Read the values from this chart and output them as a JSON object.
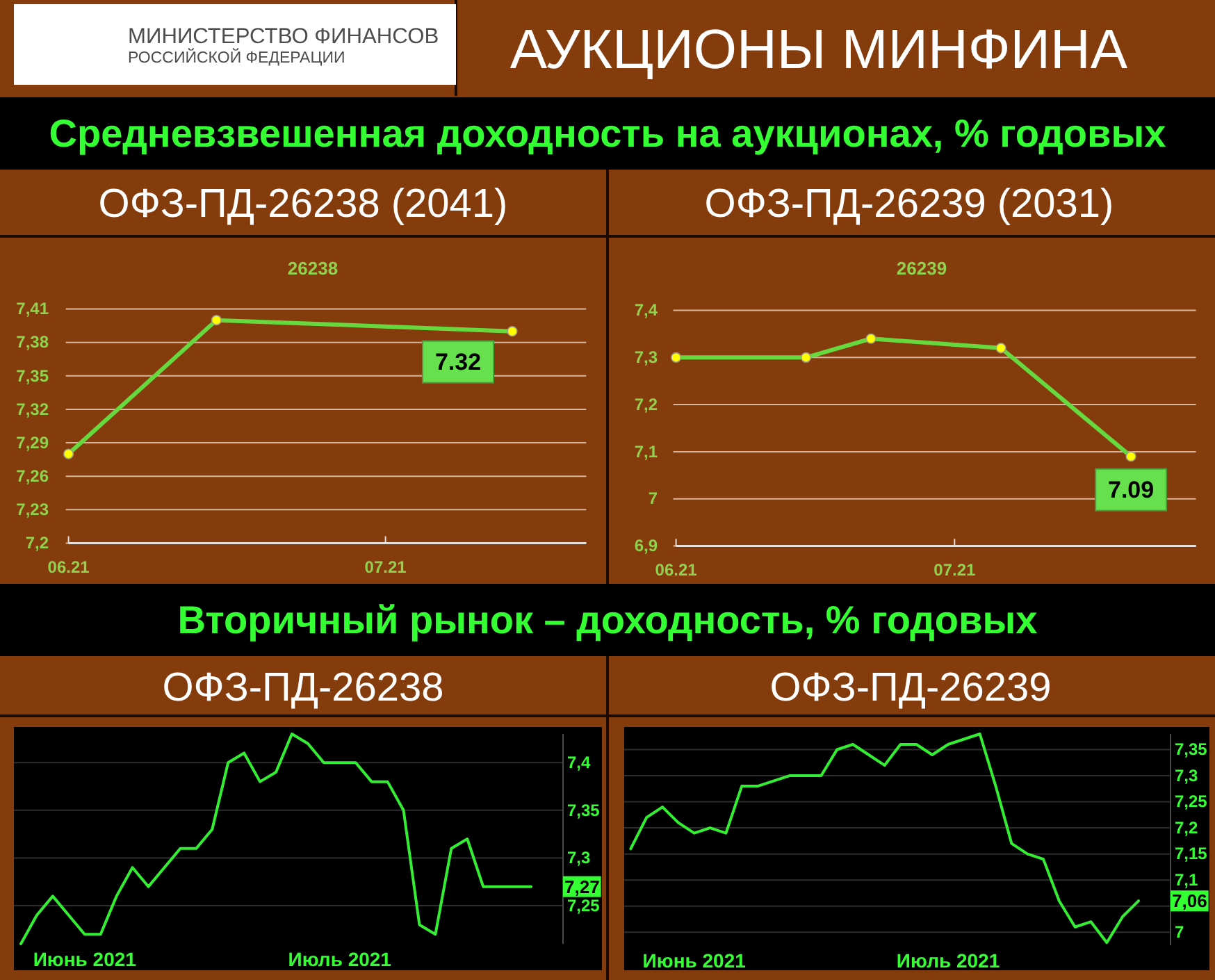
{
  "chart_data": [
    {
      "type": "other",
      "title": "АУКЦИОНЫ МИНФИНА",
      "annotations": [
        "МИНИСТЕРСТВО ФИНАНСОВ",
        "РОССИЙСКОЙ ФЕДЕРАЦИИ"
      ]
    },
    {
      "type": "line",
      "title": "ОФЗ-ПД-26238 (2041)",
      "subtitle": "26238",
      "annotations": [
        "Средневзвешенная доходность на аукционах, % годовых",
        "7.32"
      ],
      "x": [
        "2021-06-02",
        "2021-06-16",
        "2021-07-14"
      ],
      "values": [
        7.28,
        7.4,
        7.39
      ],
      "color": "#66d93f",
      "xlim": [
        "2021-06-02",
        "2021-07-21"
      ],
      "xticks": [
        {
          "value": "2021-06-02",
          "label": "06.21"
        },
        {
          "value": "2021-07-02",
          "label": "07.21"
        }
      ],
      "ylim": [
        7.2,
        7.41
      ],
      "yticks": [
        {
          "value": 7.2,
          "label": "7,2"
        },
        {
          "value": 7.23,
          "label": "7,23"
        },
        {
          "value": 7.26,
          "label": "7,26"
        },
        {
          "value": 7.29,
          "label": "7,29"
        },
        {
          "value": 7.32,
          "label": "7,32"
        },
        {
          "value": 7.35,
          "label": "7,35"
        },
        {
          "value": 7.38,
          "label": "7,38"
        },
        {
          "value": 7.41,
          "label": "7,41"
        }
      ],
      "grid": "y",
      "marker": "circle",
      "line_style": "solid"
    },
    {
      "type": "line",
      "title": "ОФЗ-ПД-26239 (2031)",
      "subtitle": "26239",
      "x": [
        "2021-06-02",
        "2021-06-16",
        "2021-06-23",
        "2021-07-07",
        "2021-07-21"
      ],
      "values": [
        7.3,
        7.3,
        7.34,
        7.32,
        7.09
      ],
      "color": "#66d93f",
      "value_labels": [
        null,
        null,
        null,
        null,
        "7.09"
      ],
      "xlim": [
        "2021-06-02",
        "2021-07-28"
      ],
      "xticks": [
        {
          "value": "2021-06-02",
          "label": "06.21"
        },
        {
          "value": "2021-07-02",
          "label": "07.21"
        }
      ],
      "ylim": [
        6.9,
        7.4
      ],
      "yticks": [
        {
          "value": 6.9,
          "label": "6,9"
        },
        7,
        {
          "value": 7.1,
          "label": "7,1"
        },
        {
          "value": 7.2,
          "label": "7,2"
        },
        {
          "value": 7.3,
          "label": "7,3"
        },
        {
          "value": 7.4,
          "label": "7,4"
        }
      ],
      "grid": "y",
      "marker": "circle",
      "line_style": "solid"
    },
    {
      "type": "line",
      "title": "ОФЗ-ПД-26238",
      "annotations": [
        "Вторичный рынок – доходность, % годовых"
      ],
      "categories": [
        null,
        null,
        null,
        null,
        "Июнь 2021",
        null,
        null,
        null,
        null,
        null,
        null,
        null,
        null,
        null,
        null,
        null,
        null,
        null,
        null,
        null,
        "Июль 2021",
        null,
        null,
        null,
        null,
        null,
        null,
        null,
        null,
        null,
        null,
        null,
        null
      ],
      "values": [
        7.21,
        7.24,
        7.26,
        7.24,
        7.22,
        7.22,
        7.26,
        7.29,
        7.27,
        7.29,
        7.31,
        7.31,
        7.33,
        7.4,
        7.41,
        7.38,
        7.39,
        7.43,
        7.42,
        7.4,
        7.4,
        7.4,
        7.38,
        7.38,
        7.35,
        7.23,
        7.22,
        7.31,
        7.32,
        7.27,
        7.27,
        7.27,
        7.27
      ],
      "value_labels": [
        null,
        null,
        null,
        null,
        null,
        null,
        null,
        null,
        null,
        null,
        null,
        null,
        null,
        null,
        null,
        null,
        null,
        null,
        null,
        null,
        null,
        null,
        null,
        null,
        null,
        null,
        null,
        null,
        null,
        null,
        null,
        null,
        "7,27"
      ],
      "color": "#33ee33",
      "ylim": [
        7.21,
        7.43
      ],
      "yticks": [
        {
          "value": 7.25,
          "label": "7,25"
        },
        {
          "value": 7.3,
          "label": "7,3"
        },
        {
          "value": 7.35,
          "label": "7,35"
        },
        {
          "value": 7.4,
          "label": "7,4"
        }
      ],
      "grid": "y",
      "line_style": "solid"
    },
    {
      "type": "line",
      "title": "ОФЗ-ПД-26239",
      "categories": [
        null,
        null,
        null,
        null,
        "Июнь 2021",
        null,
        null,
        null,
        null,
        null,
        null,
        null,
        null,
        null,
        null,
        null,
        null,
        null,
        null,
        null,
        "Июль 2021",
        null,
        null,
        null,
        null,
        null,
        null,
        null,
        null,
        null,
        null,
        null,
        null
      ],
      "values": [
        7.16,
        7.22,
        7.24,
        7.21,
        7.19,
        7.2,
        7.19,
        7.28,
        7.28,
        7.29,
        7.3,
        7.3,
        7.3,
        7.35,
        7.36,
        7.34,
        7.32,
        7.36,
        7.36,
        7.34,
        7.36,
        7.37,
        7.38,
        7.28,
        7.17,
        7.15,
        7.14,
        7.06,
        7.01,
        7.02,
        6.98,
        7.03,
        7.06
      ],
      "value_labels": [
        null,
        null,
        null,
        null,
        null,
        null,
        null,
        null,
        null,
        null,
        null,
        null,
        null,
        null,
        null,
        null,
        null,
        null,
        null,
        null,
        null,
        null,
        null,
        null,
        null,
        null,
        null,
        null,
        null,
        null,
        null,
        null,
        "7,06"
      ],
      "color": "#33ee33",
      "ylim": [
        6.975,
        7.38
      ],
      "yticks": [
        7,
        {
          "value": 7.05,
          "label": null
        },
        {
          "value": 7.1,
          "label": "7,1"
        },
        {
          "value": 7.15,
          "label": "7,15"
        },
        {
          "value": 7.2,
          "label": "7,2"
        },
        {
          "value": 7.25,
          "label": "7,25"
        },
        {
          "value": 7.3,
          "label": "7,3"
        },
        {
          "value": 7.35,
          "label": "7,35"
        }
      ],
      "grid": "y",
      "line_style": "solid"
    }
  ]
}
